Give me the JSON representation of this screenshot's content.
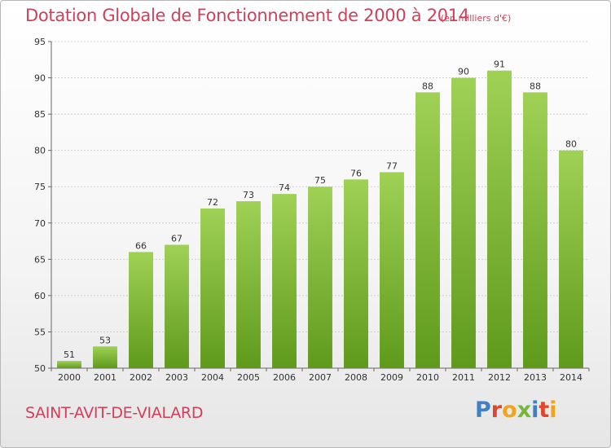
{
  "header": {
    "title": "Dotation Globale de Fonctionnement de 2000 à 2014",
    "subtitle": "(en milliers d'€)"
  },
  "footer": {
    "commune": "SAINT-AVIT-DE-VIALARD",
    "logo_letters": [
      {
        "ch": "P",
        "color": "#3f7fc4"
      },
      {
        "ch": "r",
        "color": "#e0462b"
      },
      {
        "ch": "o",
        "color": "#f2a31b"
      },
      {
        "ch": "x",
        "color": "#77b53c"
      },
      {
        "ch": "i",
        "color": "#3f7fc4"
      },
      {
        "ch": "t",
        "color": "#e0462b"
      },
      {
        "ch": "i",
        "color": "#f2a31b"
      }
    ]
  },
  "chart_data": {
    "type": "bar",
    "title": "Dotation Globale de Fonctionnement de 2000 à 2014",
    "subtitle": "(en milliers d'€)",
    "categories": [
      "2000",
      "2001",
      "2002",
      "2003",
      "2004",
      "2005",
      "2006",
      "2007",
      "2008",
      "2009",
      "2010",
      "2011",
      "2012",
      "2013",
      "2014"
    ],
    "values": [
      51,
      53,
      66,
      67,
      72,
      73,
      74,
      75,
      76,
      77,
      88,
      90,
      91,
      88,
      80
    ],
    "ylim": [
      50,
      95
    ],
    "yticks": [
      50,
      55,
      60,
      65,
      70,
      75,
      80,
      85,
      90,
      95
    ],
    "grid": true,
    "bar_color_top": "#9fd155",
    "bar_color_bottom": "#5f9a1c"
  }
}
